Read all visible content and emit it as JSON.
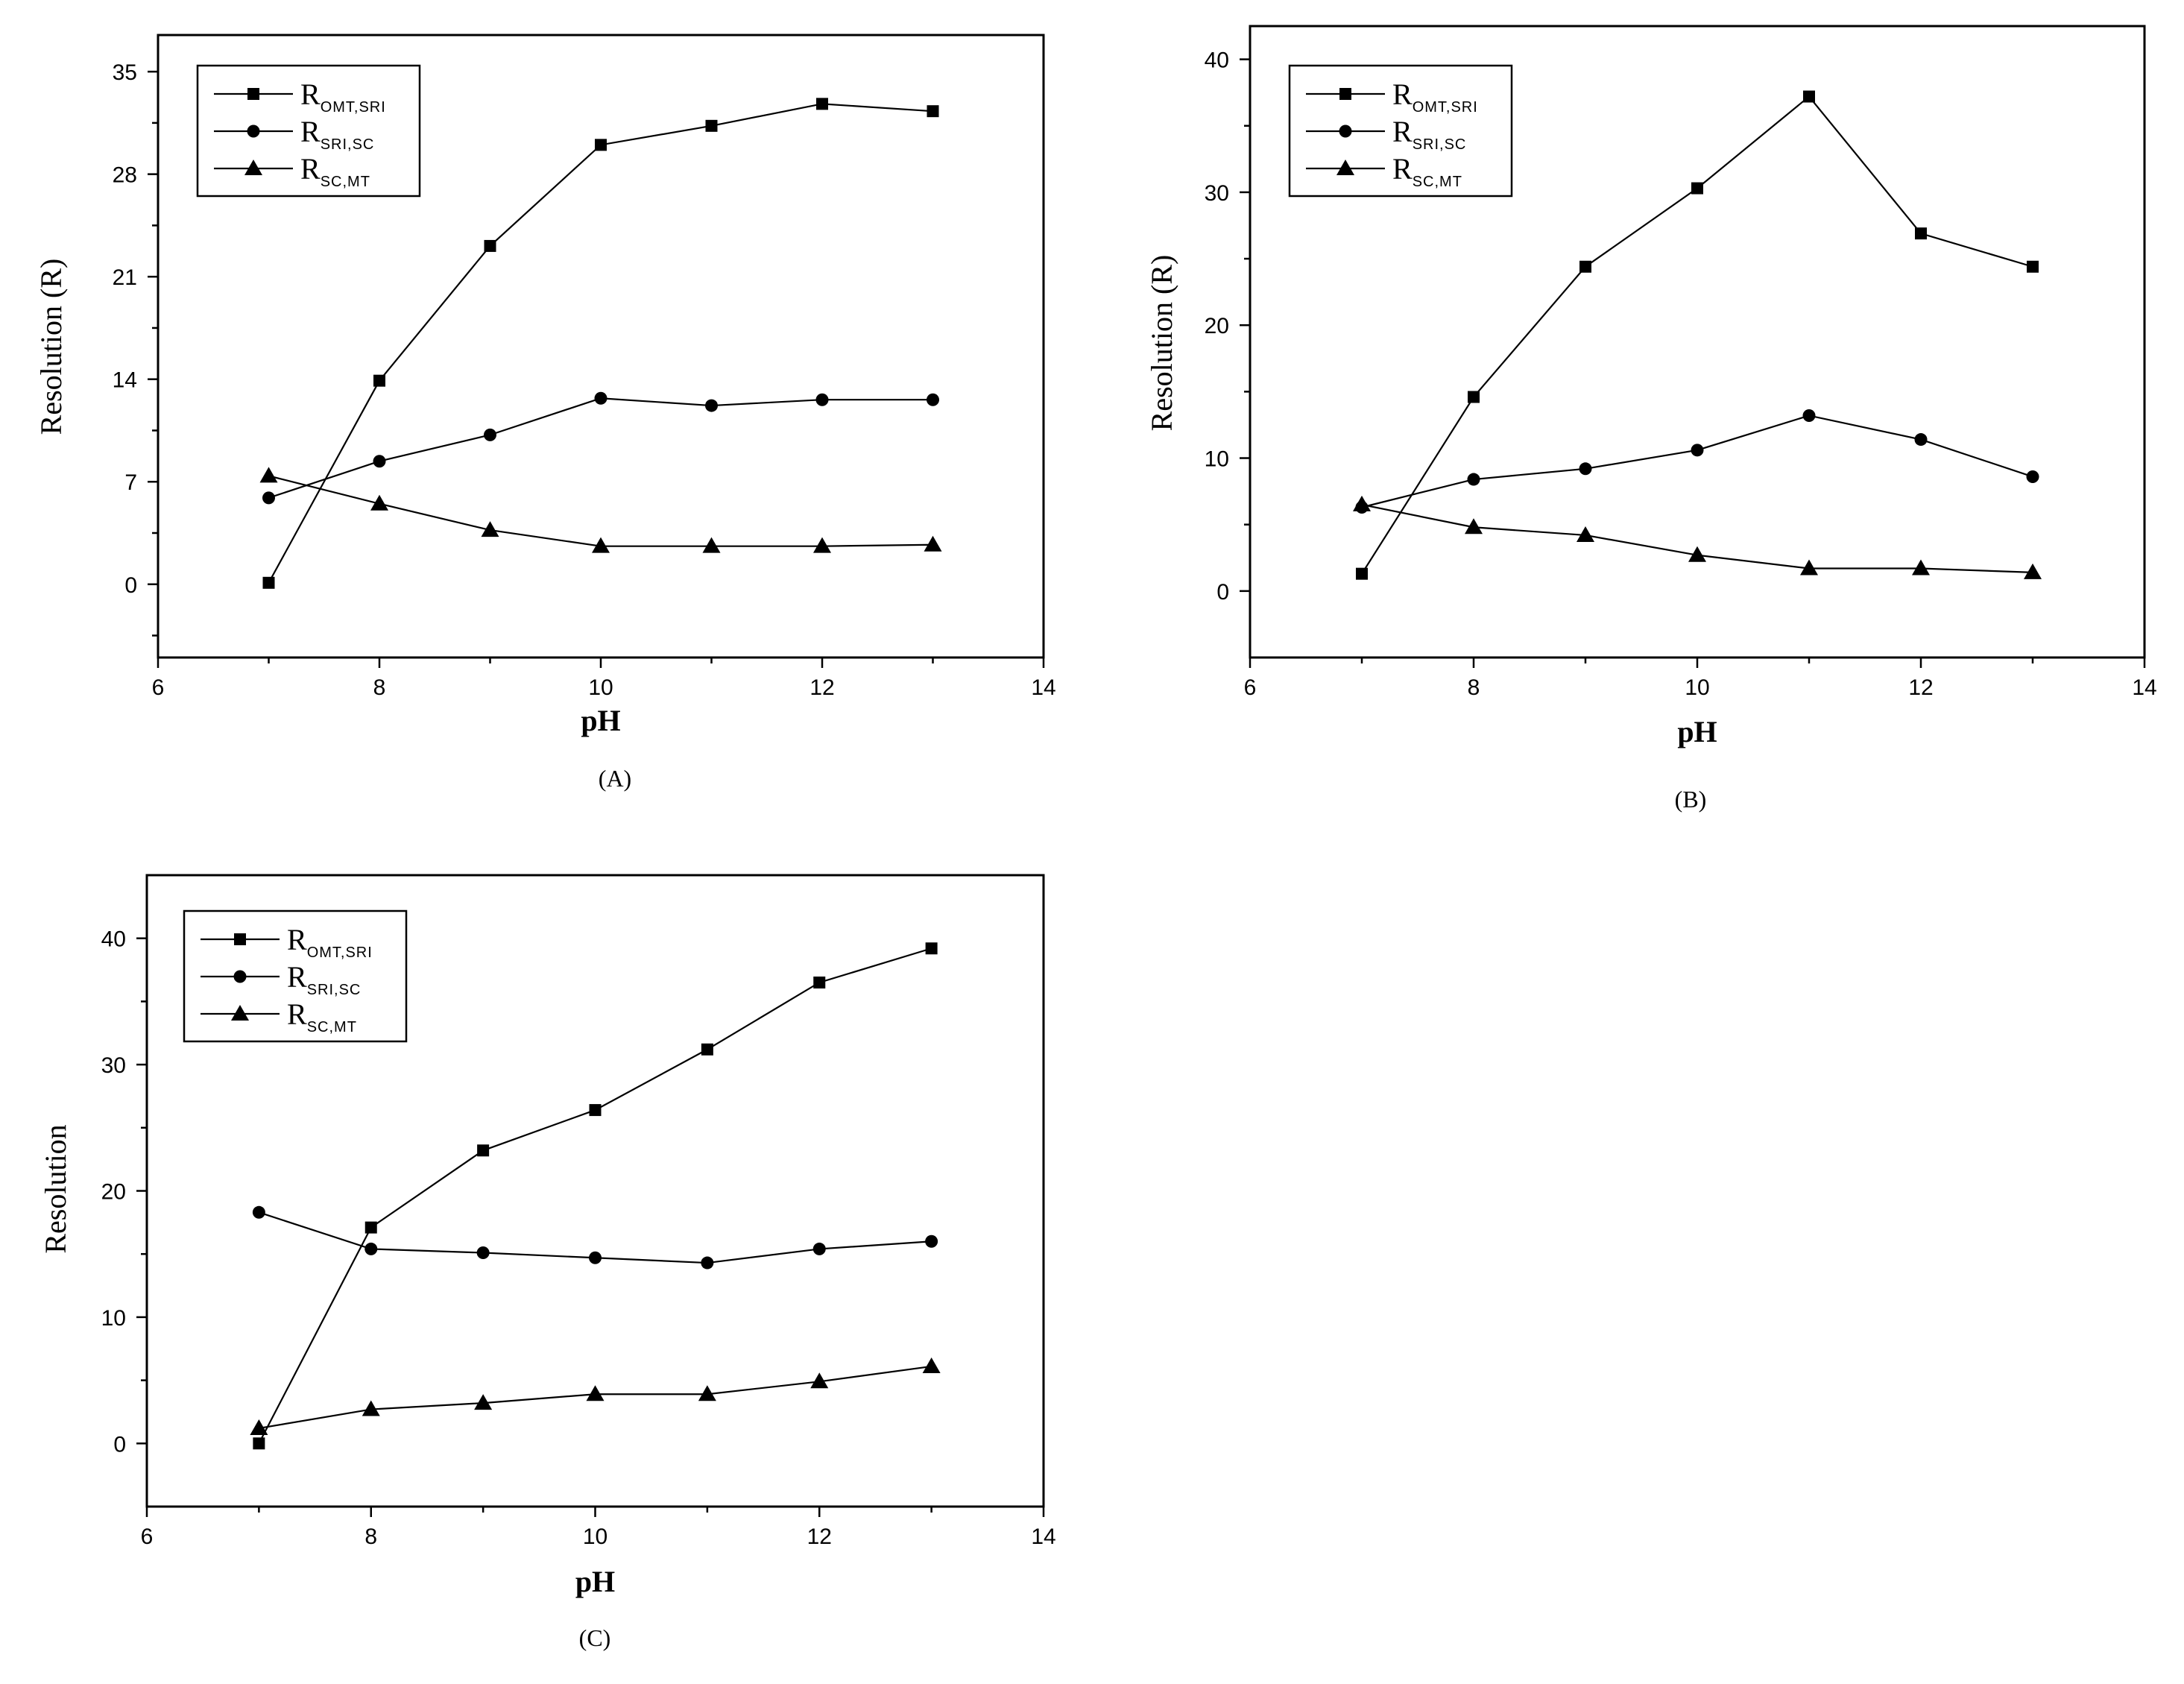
{
  "chart_data": [
    {
      "type": "line",
      "panel_label": "(A)",
      "xlabel": "pH",
      "ylabel": "Resolution (R)",
      "xlim": [
        6,
        14
      ],
      "ylim": [
        -5,
        37.5
      ],
      "xticks": [
        "6",
        "8",
        "10",
        "12",
        "14"
      ],
      "yticks": [
        "0",
        "7",
        "14",
        "21",
        "28",
        "35"
      ],
      "legend_position": "top-left",
      "x": [
        7,
        8,
        9,
        10,
        11,
        12,
        13
      ],
      "series": [
        {
          "name_main": "R",
          "name_sub": "OMT,SRI",
          "marker": "square",
          "values": [
            0.1,
            13.9,
            23.1,
            30.0,
            31.3,
            32.8,
            32.3
          ]
        },
        {
          "name_main": "R",
          "name_sub": "SRI,SC",
          "marker": "circle",
          "values": [
            5.9,
            8.4,
            10.2,
            12.7,
            12.2,
            12.6,
            12.6
          ]
        },
        {
          "name_main": "R",
          "name_sub": "SC,MT",
          "marker": "triangle",
          "values": [
            7.4,
            5.5,
            3.7,
            2.6,
            2.6,
            2.6,
            2.7
          ]
        }
      ]
    },
    {
      "type": "line",
      "panel_label": "(B)",
      "xlabel": "pH",
      "ylabel": "Resolution (R)",
      "xlim": [
        6,
        14
      ],
      "ylim": [
        -5,
        42.5
      ],
      "xticks": [
        "6",
        "8",
        "10",
        "12",
        "14"
      ],
      "yticks": [
        "0",
        "10",
        "20",
        "30",
        "40"
      ],
      "legend_position": "top-left",
      "x": [
        7,
        8,
        9,
        10,
        11,
        12,
        13
      ],
      "series": [
        {
          "name_main": "R",
          "name_sub": "OMT,SRI",
          "marker": "square",
          "values": [
            1.3,
            14.6,
            24.4,
            30.3,
            37.2,
            26.9,
            24.4
          ]
        },
        {
          "name_main": "R",
          "name_sub": "SRI,SC",
          "marker": "circle",
          "values": [
            6.3,
            8.4,
            9.2,
            10.6,
            13.2,
            11.4,
            8.6
          ]
        },
        {
          "name_main": "R",
          "name_sub": "SC,MT",
          "marker": "triangle",
          "values": [
            6.5,
            4.8,
            4.2,
            2.7,
            1.7,
            1.7,
            1.4
          ]
        }
      ]
    },
    {
      "type": "line",
      "panel_label": "(C)",
      "xlabel": "pH",
      "ylabel": "Resolution",
      "xlim": [
        6,
        14
      ],
      "ylim": [
        -5,
        45
      ],
      "xticks": [
        "6",
        "8",
        "10",
        "12",
        "14"
      ],
      "yticks": [
        "0",
        "10",
        "20",
        "30",
        "40"
      ],
      "legend_position": "top-left",
      "x": [
        7,
        8,
        9,
        10,
        11,
        12,
        13
      ],
      "series": [
        {
          "name_main": "R",
          "name_sub": "OMT,SRI",
          "marker": "square",
          "values": [
            0.0,
            17.1,
            23.2,
            26.4,
            31.2,
            36.5,
            39.2
          ]
        },
        {
          "name_main": "R",
          "name_sub": "SRI,SC",
          "marker": "circle",
          "values": [
            18.3,
            15.4,
            15.1,
            14.7,
            14.3,
            15.4,
            16.0
          ]
        },
        {
          "name_main": "R",
          "name_sub": "SC,MT",
          "marker": "triangle",
          "values": [
            1.2,
            2.7,
            3.2,
            3.9,
            3.9,
            4.9,
            6.1
          ]
        }
      ]
    }
  ]
}
